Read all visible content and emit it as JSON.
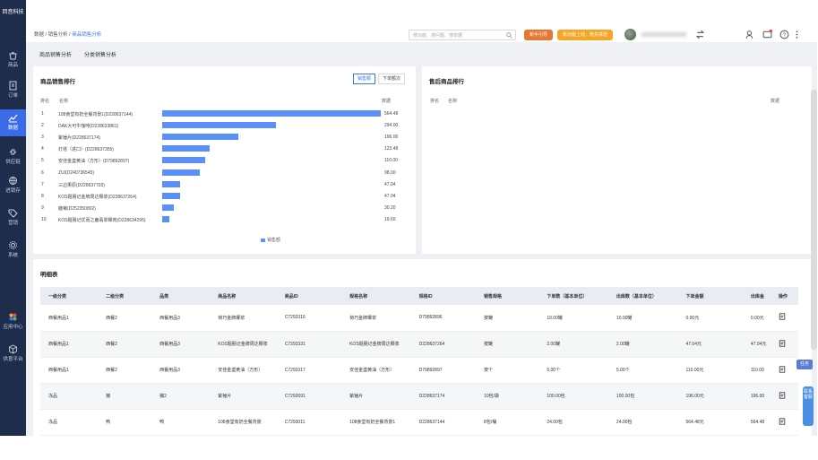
{
  "app": {
    "logo": "回音科技"
  },
  "nav": [
    {
      "label": "商品",
      "icon": "bag-icon"
    },
    {
      "label": "订单",
      "icon": "document-icon"
    },
    {
      "label": "数据",
      "icon": "chart-icon",
      "active": true
    },
    {
      "label": "供应链",
      "icon": "link-icon"
    },
    {
      "label": "进销存",
      "icon": "globe-icon"
    },
    {
      "label": "营销",
      "icon": "tag-icon"
    },
    {
      "label": "系统",
      "icon": "gear-icon"
    },
    {
      "label": "应用中心",
      "icon": "apps-icon"
    },
    {
      "label": "供意平台",
      "icon": "cube-icon"
    }
  ],
  "breadcrumb": {
    "a": "数据",
    "b": "销售分析",
    "c": "商品销售分析"
  },
  "search": {
    "placeholder": "搜功能、搜问题、搜单据"
  },
  "header": {
    "btn_guide": "新手引导",
    "btn_promo": "新功能上线，抢先体验"
  },
  "tabs": [
    "商品销售分析",
    "分类销售分析"
  ],
  "ranking": {
    "title": "商品销售排行",
    "toggle": [
      "销售额",
      "下单额次"
    ],
    "col_rank": "排名",
    "col_name": "名称",
    "col_value": "数据",
    "legend": "销售额",
    "rows": [
      {
        "rank": "1",
        "name": "108食堂有奶全餐背景1(D228637144)",
        "value": "564.48",
        "v": 564.48
      },
      {
        "rank": "2",
        "name": "DAK大可牛咖啡(D228633861)",
        "value": "294.00",
        "v": 294.0
      },
      {
        "rank": "3",
        "name": "紫锤片(D228637174)",
        "value": "196.00",
        "v": 196.0
      },
      {
        "rank": "4",
        "name": "灯塔（进口）(D228637355)",
        "value": "123.48",
        "v": 123.48
      },
      {
        "rank": "5",
        "name": "安佳金盏黄油（方形）(D79892897)",
        "value": "110.00",
        "v": 110.0
      },
      {
        "rank": "6",
        "name": "ZUI(D240736545)",
        "value": "98.00",
        "v": 98.0
      },
      {
        "rank": "7",
        "name": "三边果原(D228637703)",
        "value": "47.04",
        "v": 47.04
      },
      {
        "rank": "8",
        "name": "KOS题朋记金牌周达椰浆(D228637264)",
        "value": "47.04",
        "v": 47.04
      },
      {
        "rank": "9",
        "name": "鹿菊(D252350802)",
        "value": "30.20",
        "v": 30.2
      },
      {
        "rank": "10",
        "name": "KOS题朋记优而之鹿翡翠椰肉(D228634295)",
        "value": "19.60",
        "v": 19.6
      }
    ]
  },
  "aftersale": {
    "title": "售后商品排行",
    "col_rank": "排名",
    "col_name": "名称",
    "col_value": "数据"
  },
  "detail": {
    "title": "明细表",
    "headers": [
      "一级分类",
      "二级分类",
      "品类",
      "商品名称",
      "商品ID",
      "规格名称",
      "规格ID",
      "销售规格",
      "下单数（基本单位）",
      "出库数（基本单位）",
      "下单金额",
      "出库金",
      "操作"
    ],
    "rows": [
      [
        "西餐用品1",
        "西餐2",
        "西餐用品3",
        "荷巧金牌椰浆",
        "C7293316",
        "荷巧金牌椰浆",
        "D79892896",
        "按罐",
        "10.00罐",
        "10.00罐",
        "0.00元",
        "0.00元"
      ],
      [
        "西餐用品1",
        "西餐2",
        "西餐用品3",
        "KOS题朋记金牌周达椰浆",
        "C7293331",
        "KOS题朋记金牌周达椰浆",
        "D228637264",
        "按罐",
        "2.00罐",
        "2.00罐",
        "47.04元",
        "47.04元"
      ],
      [
        "西餐用品1",
        "西餐2",
        "西餐用品3",
        "安佳金盏黄油（方形）",
        "C7293317",
        "安佳金盏黄油（方形）",
        "D79892897",
        "按个",
        "5.00个",
        "5.00个",
        "110.00元",
        "110.00"
      ],
      [
        "冻品",
        "猪",
        "猪2",
        "紫锤片",
        "C7292691",
        "紫锤片",
        "D228637174",
        "10包/袋",
        "100.00包",
        "100.00包",
        "196.00元",
        "196.00"
      ],
      [
        "冻品",
        "鸭",
        "鸭",
        "108食堂有奶全餐背景",
        "C7293011",
        "108食堂有奶全餐背景1",
        "D228637144",
        "8包/桶",
        "24.00包",
        "24.00包",
        "564.48元",
        "564.48"
      ]
    ]
  },
  "float": {
    "task": "任务",
    "service": "联系客服"
  }
}
